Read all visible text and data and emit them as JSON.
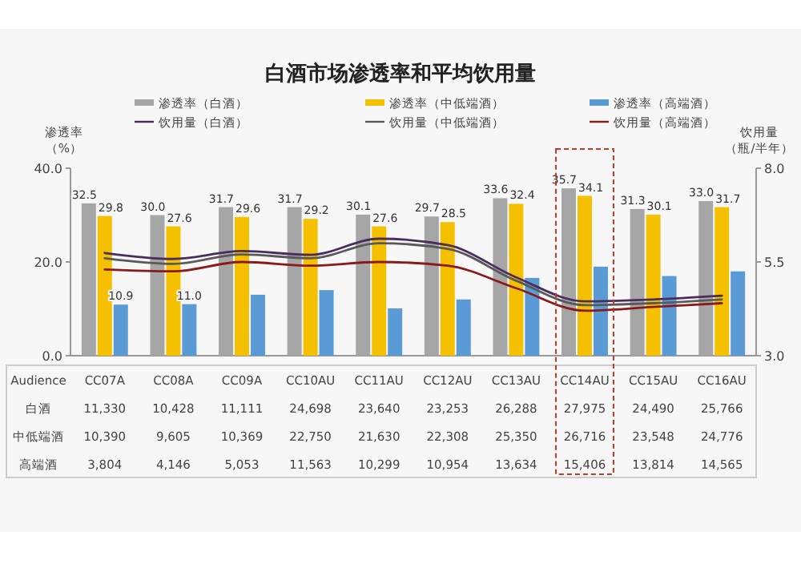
{
  "chart_data": {
    "type": "bar",
    "title": "白酒市场渗透率和平均饮用量",
    "ylabel": "渗透率（%）",
    "y2label": "饮用量（瓶/半年）",
    "xlabel": "Audience",
    "categories": [
      "CC07A",
      "CC08A",
      "CC09A",
      "CC10AU",
      "CC11AU",
      "CC12AU",
      "CC13AU",
      "CC14AU",
      "CC15AU",
      "CC16AU"
    ],
    "series": [
      {
        "name": "渗透率（白酒）",
        "color": "#a6a6a6",
        "values": [
          32.5,
          30.0,
          31.7,
          31.7,
          30.1,
          29.7,
          33.6,
          35.7,
          31.3,
          33.0
        ],
        "value_labels": [
          "32.5",
          "30.0",
          "31.7",
          "31.7",
          "30.1",
          "29.7",
          "33.6",
          "35.7",
          "31.3",
          "33.0"
        ]
      },
      {
        "name": "渗透率（中低端酒）",
        "color": "#f5c000",
        "values": [
          29.8,
          27.6,
          29.6,
          29.2,
          27.6,
          28.5,
          32.4,
          34.1,
          30.1,
          31.7
        ],
        "value_labels": [
          "29.8",
          "27.6",
          "29.6",
          "29.2",
          "27.6",
          "28.5",
          "32.4",
          "34.1",
          "30.1",
          "31.7"
        ]
      },
      {
        "name": "渗透率（高端酒）",
        "color": "#5b9bd5",
        "values": [
          10.9,
          11.0,
          13.0,
          14.0,
          10.1,
          12.0,
          16.6,
          19.0,
          17.0,
          18.0
        ],
        "value_labels": [
          "10.9",
          "11.0",
          null,
          null,
          null,
          null,
          null,
          null,
          null,
          null
        ]
      },
      {
        "name": "饮用量（白酒）",
        "type": "line",
        "axis": "y2",
        "color": "#4b2c5e",
        "values": [
          5.74,
          5.58,
          5.79,
          5.69,
          6.12,
          5.95,
          5.09,
          4.45,
          4.5,
          4.6
        ]
      },
      {
        "name": "饮用量（中低端酒）",
        "type": "line",
        "axis": "y2",
        "color": "#595959",
        "values": [
          5.6,
          5.45,
          5.7,
          5.6,
          6.0,
          5.85,
          5.0,
          4.35,
          4.4,
          4.5
        ]
      },
      {
        "name": "饮用量（高端酒）",
        "type": "line",
        "axis": "y2",
        "color": "#8b1a1a",
        "values": [
          5.3,
          5.25,
          5.5,
          5.4,
          5.5,
          5.4,
          4.8,
          4.2,
          4.3,
          4.4
        ]
      }
    ],
    "ylim": [
      0,
      40
    ],
    "yticks": [
      {
        "value": 0,
        "label": "0.0"
      },
      {
        "value": 20,
        "label": "20.0"
      },
      {
        "value": 40,
        "label": "40.0"
      }
    ],
    "y2lim": [
      3,
      8
    ],
    "y2ticks": [
      {
        "value": 3,
        "label": "3.0"
      },
      {
        "value": 5.5,
        "label": "5.5"
      },
      {
        "value": 8,
        "label": "8.0"
      }
    ],
    "legend": "top",
    "grid": false,
    "annotations": [
      "白酒",
      "11,330",
      "10,428",
      "11,111",
      "24,698",
      "23,640",
      "23,253",
      "26,288",
      "27,975",
      "24,490",
      "25,766",
      "中低端酒",
      "10,390",
      "9,605",
      "10,369",
      "22,750",
      "21,630",
      "22,308",
      "25,350",
      "26,716",
      "23,548",
      "24,776",
      "高端酒",
      "3,804",
      "4,146",
      "5,053",
      "11,563",
      "10,299",
      "10,954",
      "13,634",
      "15,406",
      "13,814",
      "14,565"
    ]
  }
}
